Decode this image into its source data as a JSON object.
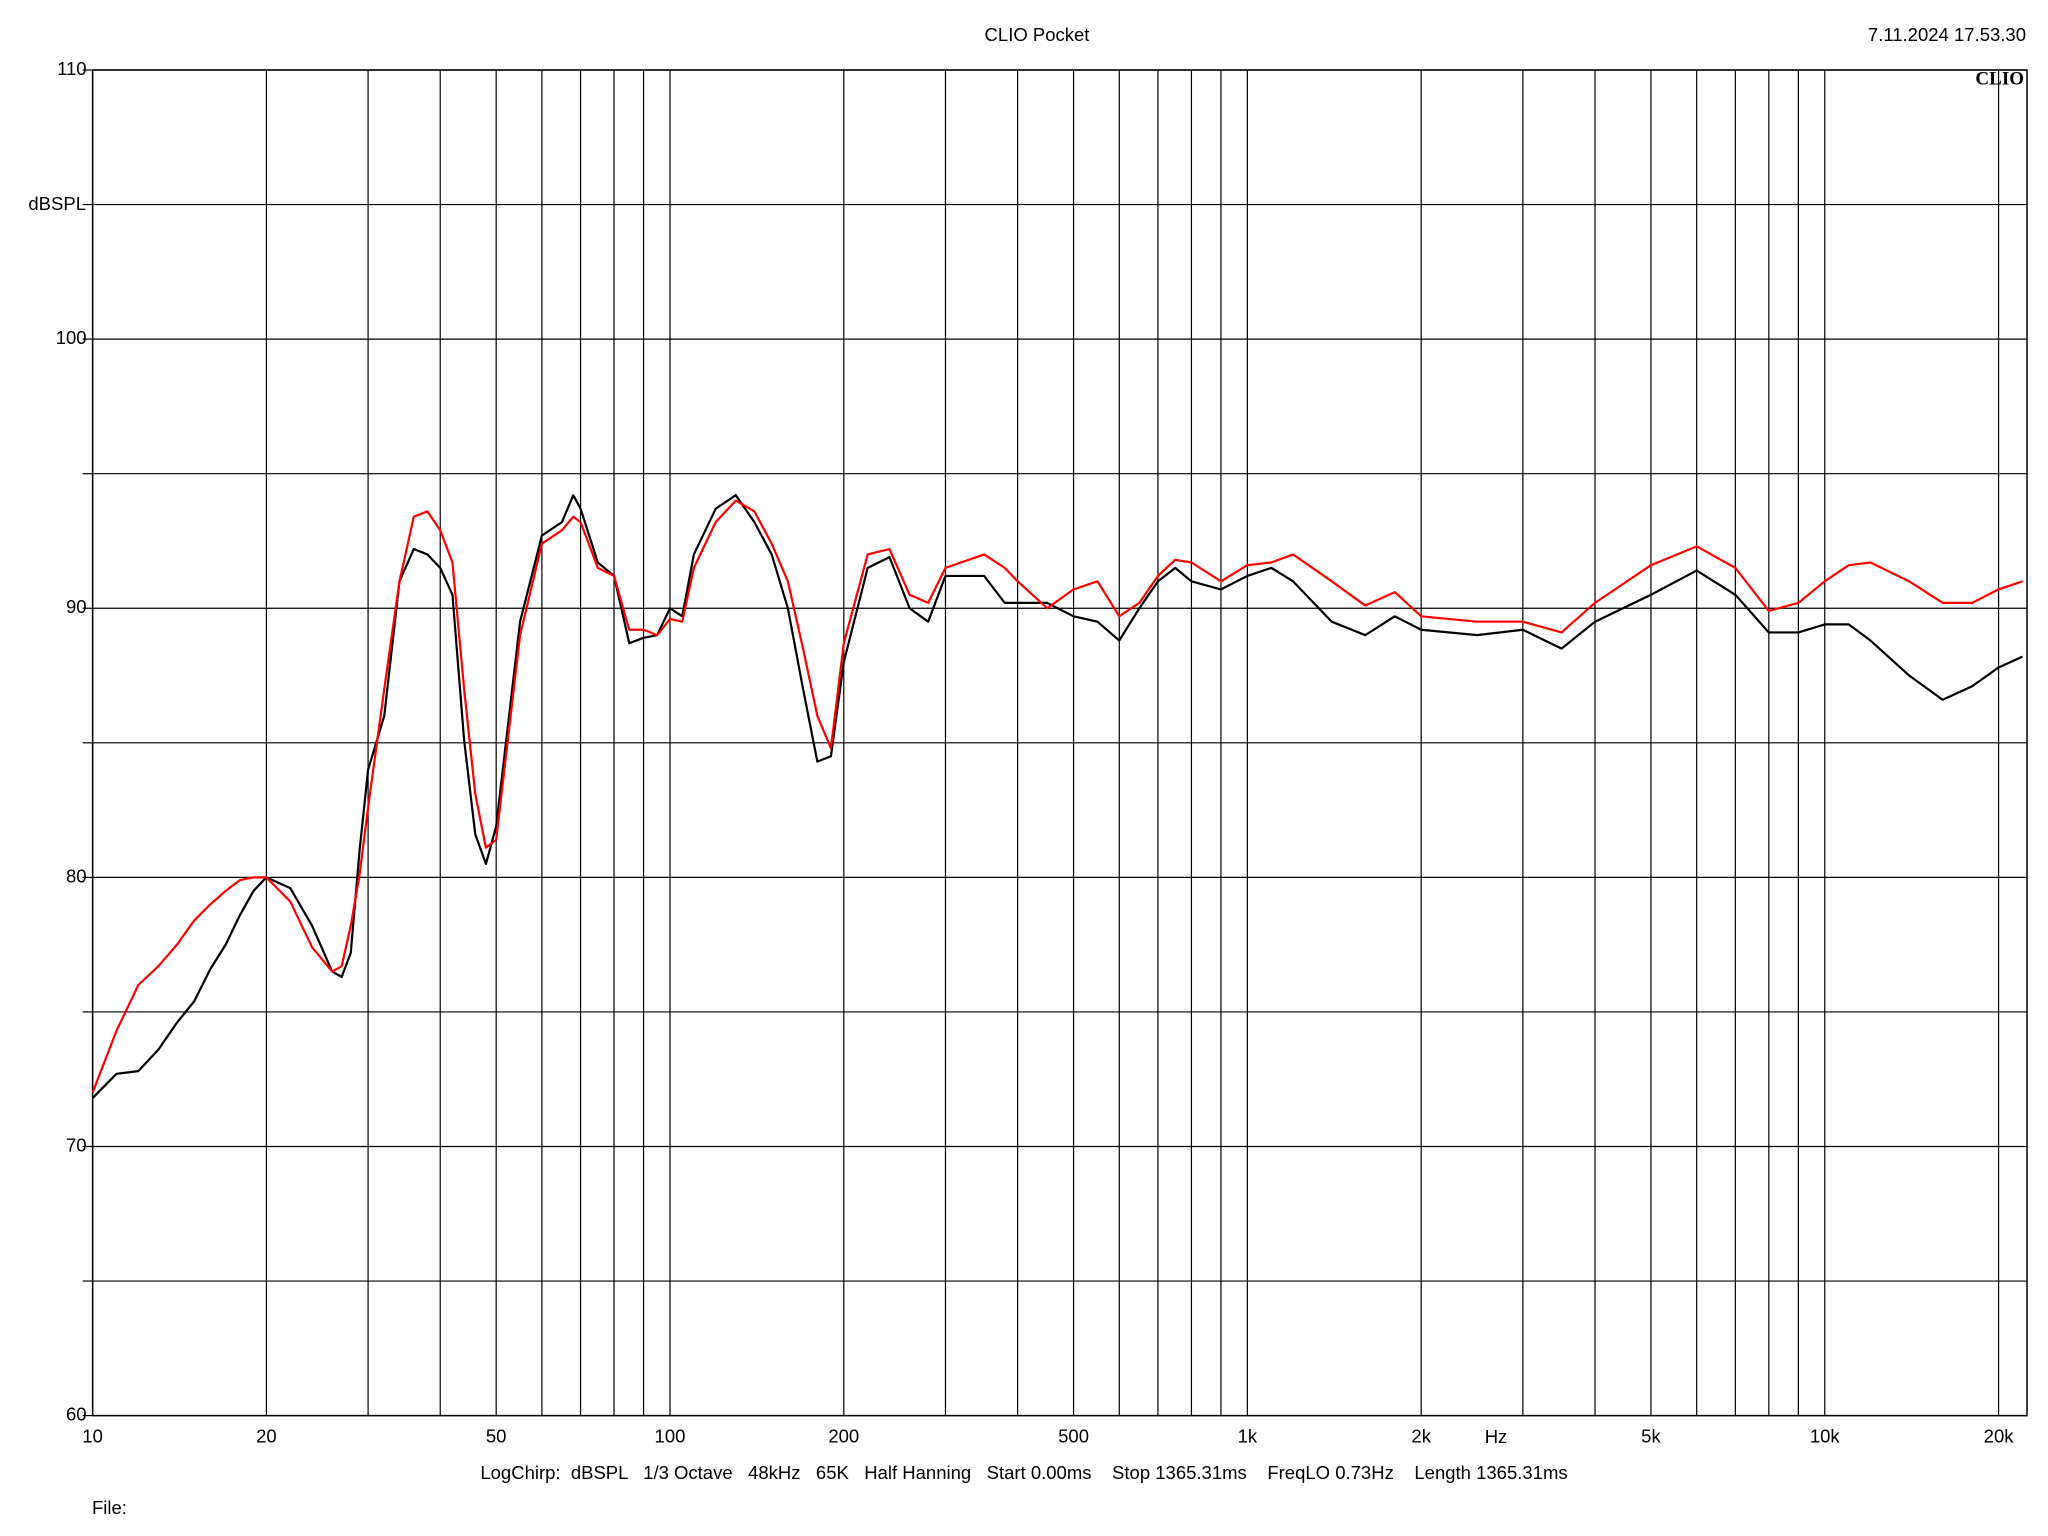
{
  "chart_data": {
    "type": "line",
    "title": "CLIO Pocket",
    "timestamp": "7.11.2024 17.53.30",
    "logo": "CLIO",
    "ylabel": "dBSPL",
    "xlabel": "Hz",
    "footer": "LogChirp:  dBSPL   1/3 Octave   48kHz   65K   Half Hanning   Start 0.00ms    Stop 1365.31ms    FreqLO 0.73Hz    Length 1365.31ms",
    "file_label": "File:",
    "xscale": "log",
    "grid": true,
    "xlim": [
      10,
      22400
    ],
    "ylim": [
      60,
      110
    ],
    "xticks": [
      10,
      20,
      50,
      100,
      200,
      500,
      {
        "value": 1000,
        "label": "1k"
      },
      {
        "value": 2000,
        "label": "2k"
      },
      {
        "value": 5000,
        "label": "5k"
      },
      {
        "value": 10000,
        "label": "10k"
      },
      {
        "value": 20000,
        "label": "20k"
      }
    ],
    "xminor": [
      30,
      40,
      60,
      70,
      80,
      90,
      300,
      400,
      600,
      700,
      800,
      900,
      3000,
      4000,
      6000,
      7000,
      8000,
      9000
    ],
    "yticks": [
      60,
      70,
      80,
      90,
      100,
      110
    ],
    "yminor": [
      65,
      75,
      85,
      95,
      105
    ],
    "x": [
      10,
      11,
      12,
      13,
      14,
      15,
      16,
      17,
      18,
      19,
      20,
      22,
      24,
      26,
      27,
      28,
      29,
      30,
      32,
      34,
      36,
      38,
      40,
      42,
      44,
      46,
      48,
      50,
      55,
      60,
      65,
      68,
      70,
      75,
      80,
      85,
      90,
      95,
      100,
      105,
      110,
      120,
      130,
      140,
      150,
      160,
      170,
      180,
      190,
      200,
      220,
      240,
      260,
      280,
      300,
      350,
      380,
      400,
      450,
      500,
      550,
      600,
      650,
      700,
      750,
      800,
      900,
      1000,
      1100,
      1200,
      1400,
      1600,
      1800,
      2000,
      2500,
      3000,
      3500,
      4000,
      5000,
      6000,
      7000,
      8000,
      9000,
      10000,
      11000,
      12000,
      14000,
      16000,
      18000,
      20000,
      22000
    ],
    "series": [
      {
        "color": "#000000",
        "values": [
          71.8,
          72.7,
          72.8,
          73.6,
          74.6,
          75.4,
          76.6,
          77.5,
          78.6,
          79.5,
          80.0,
          79.6,
          78.2,
          76.5,
          76.3,
          77.2,
          81.0,
          84.0,
          86.0,
          91.0,
          92.2,
          92.0,
          91.5,
          90.5,
          85.1,
          81.6,
          80.5,
          81.9,
          89.5,
          92.7,
          93.2,
          94.2,
          93.7,
          91.7,
          91.2,
          88.7,
          88.9,
          89.0,
          90.0,
          89.7,
          92.0,
          93.7,
          94.2,
          93.2,
          92.0,
          90.0,
          87.0,
          84.3,
          84.5,
          88.0,
          91.5,
          91.9,
          90.0,
          89.5,
          91.2,
          91.2,
          90.2,
          90.2,
          90.2,
          89.7,
          89.5,
          88.8,
          90.0,
          91.0,
          91.5,
          91.0,
          90.7,
          91.2,
          91.5,
          91.0,
          89.5,
          89.0,
          89.7,
          89.2,
          89.0,
          89.2,
          88.5,
          89.5,
          90.5,
          91.4,
          90.5,
          89.1,
          89.1,
          89.4,
          89.4,
          88.8,
          87.5,
          86.6,
          87.1,
          87.8,
          88.2
        ]
      },
      {
        "color": "#ff0000",
        "values": [
          72.0,
          74.3,
          76.0,
          76.7,
          77.5,
          78.4,
          79.0,
          79.5,
          79.9,
          80.0,
          80.0,
          79.1,
          77.4,
          76.5,
          76.7,
          78.2,
          80.1,
          82.6,
          87.0,
          91.0,
          93.4,
          93.6,
          92.9,
          91.7,
          87.0,
          83.1,
          81.1,
          81.4,
          89.0,
          92.4,
          92.9,
          93.4,
          93.2,
          91.5,
          91.2,
          89.2,
          89.2,
          89.0,
          89.6,
          89.5,
          91.5,
          93.2,
          94.0,
          93.6,
          92.4,
          91.0,
          88.5,
          86.0,
          84.8,
          88.7,
          92.0,
          92.2,
          90.5,
          90.2,
          91.5,
          92.0,
          91.5,
          91.0,
          90.0,
          90.7,
          91.0,
          89.7,
          90.2,
          91.2,
          91.8,
          91.7,
          91.0,
          91.6,
          91.7,
          92.0,
          91.0,
          90.1,
          90.6,
          89.7,
          89.5,
          89.5,
          89.1,
          90.2,
          91.6,
          92.3,
          91.5,
          89.9,
          90.2,
          91.0,
          91.6,
          91.7,
          91.0,
          90.2,
          90.2,
          90.7,
          91.0
        ]
      }
    ]
  }
}
